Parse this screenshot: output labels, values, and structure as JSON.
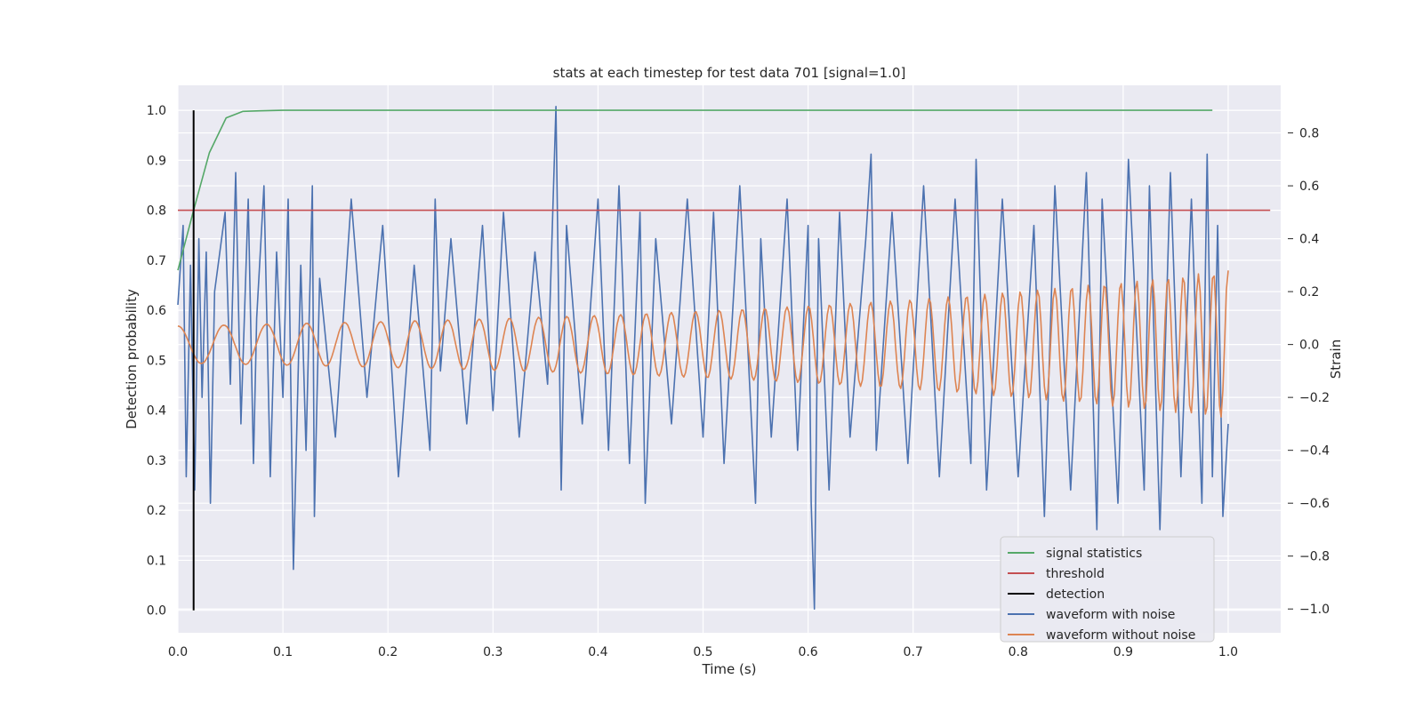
{
  "chart_data": {
    "type": "line",
    "title": "stats at each timestep for test data 701 [signal=1.0]",
    "xlabel": "Time (s)",
    "ylabel_left": "Detection probability",
    "ylabel_right": "Strain",
    "xlim": [
      0.0,
      1.05
    ],
    "ylim_left": [
      -0.045,
      1.05
    ],
    "ylim_right": [
      -1.09,
      0.98
    ],
    "x_ticks": [
      "0.0",
      "0.1",
      "0.2",
      "0.3",
      "0.4",
      "0.5",
      "0.6",
      "0.7",
      "0.8",
      "0.9",
      "1.0"
    ],
    "y_ticks_left": [
      "0.0",
      "0.1",
      "0.2",
      "0.3",
      "0.4",
      "0.5",
      "0.6",
      "0.7",
      "0.8",
      "0.9",
      "1.0"
    ],
    "y_ticks_right": [
      "−1.0",
      "−0.8",
      "−0.6",
      "−0.4",
      "−0.2",
      "0.0",
      "0.2",
      "0.4",
      "0.6",
      "0.8"
    ],
    "grid": true,
    "legend_position": "lower-right",
    "colors": {
      "signal": "#55a868",
      "threshold": "#c44e52",
      "detection": "#000000",
      "noisy": "#4c72b0",
      "clean": "#dd8452",
      "background": "#eaeaf2",
      "grid": "#ffffff"
    },
    "series": [
      {
        "name": "signal statistics",
        "axis": "left",
        "x": [
          0.0,
          0.015,
          0.03,
          0.046,
          0.062,
          0.078,
          0.1,
          0.2,
          0.4,
          0.6,
          0.8,
          0.985
        ],
        "y": [
          0.68,
          0.8,
          0.915,
          0.985,
          0.998,
          0.999,
          1.0,
          1.0,
          1.0,
          1.0,
          1.0,
          1.0
        ]
      },
      {
        "name": "threshold",
        "axis": "left",
        "x": [
          0.0,
          1.04
        ],
        "y": [
          0.8,
          0.8
        ]
      },
      {
        "name": "detection",
        "axis": "left",
        "x": [
          0.015,
          0.015
        ],
        "y": [
          0.0,
          1.0
        ]
      },
      {
        "name": "waveform with noise",
        "axis": "right",
        "x": [
          0.0,
          0.005,
          0.008,
          0.012,
          0.016,
          0.02,
          0.023,
          0.027,
          0.031,
          0.035,
          0.045,
          0.05,
          0.055,
          0.06,
          0.067,
          0.072,
          0.075,
          0.082,
          0.088,
          0.094,
          0.1,
          0.105,
          0.11,
          0.117,
          0.122,
          0.128,
          0.13,
          0.135,
          0.15,
          0.165,
          0.18,
          0.195,
          0.21,
          0.225,
          0.24,
          0.245,
          0.25,
          0.26,
          0.275,
          0.29,
          0.3,
          0.31,
          0.325,
          0.34,
          0.352,
          0.36,
          0.365,
          0.37,
          0.385,
          0.4,
          0.41,
          0.42,
          0.43,
          0.44,
          0.445,
          0.455,
          0.47,
          0.485,
          0.5,
          0.51,
          0.52,
          0.535,
          0.55,
          0.555,
          0.565,
          0.58,
          0.59,
          0.6,
          0.603,
          0.606,
          0.61,
          0.62,
          0.63,
          0.64,
          0.655,
          0.66,
          0.665,
          0.68,
          0.695,
          0.71,
          0.725,
          0.74,
          0.755,
          0.76,
          0.77,
          0.785,
          0.8,
          0.815,
          0.825,
          0.835,
          0.85,
          0.865,
          0.875,
          0.88,
          0.895,
          0.905,
          0.92,
          0.925,
          0.935,
          0.945,
          0.955,
          0.965,
          0.975,
          0.98,
          0.985,
          0.99,
          0.995,
          1.0
        ],
        "y": [
          0.15,
          0.45,
          -0.5,
          0.3,
          -0.55,
          0.4,
          -0.2,
          0.35,
          -0.6,
          0.2,
          0.5,
          -0.15,
          0.65,
          -0.3,
          0.55,
          -0.45,
          0.1,
          0.6,
          -0.5,
          0.35,
          -0.2,
          0.55,
          -0.85,
          0.3,
          -0.4,
          0.6,
          -0.65,
          0.25,
          -0.35,
          0.55,
          -0.2,
          0.45,
          -0.5,
          0.3,
          -0.4,
          0.55,
          -0.1,
          0.4,
          -0.3,
          0.45,
          -0.25,
          0.5,
          -0.35,
          0.35,
          -0.15,
          0.9,
          -0.55,
          0.45,
          -0.3,
          0.55,
          -0.4,
          0.6,
          -0.45,
          0.5,
          -0.6,
          0.4,
          -0.3,
          0.55,
          -0.35,
          0.5,
          -0.45,
          0.6,
          -0.6,
          0.4,
          -0.35,
          0.55,
          -0.4,
          0.45,
          -0.6,
          -1.0,
          0.4,
          -0.55,
          0.5,
          -0.35,
          0.4,
          0.72,
          -0.4,
          0.5,
          -0.45,
          0.6,
          -0.5,
          0.55,
          -0.45,
          0.7,
          -0.55,
          0.55,
          -0.5,
          0.45,
          -0.65,
          0.6,
          -0.55,
          0.65,
          -0.7,
          0.55,
          -0.6,
          0.7,
          -0.55,
          0.6,
          -0.7,
          0.65,
          -0.5,
          0.55,
          -0.6,
          0.72,
          -0.5,
          0.45,
          -0.65,
          -0.3
        ]
      },
      {
        "name": "waveform without noise",
        "axis": "right",
        "x": [],
        "y": []
      }
    ],
    "legend": [
      "signal statistics",
      "threshold",
      "detection",
      "waveform with noise",
      "waveform without noise"
    ]
  }
}
